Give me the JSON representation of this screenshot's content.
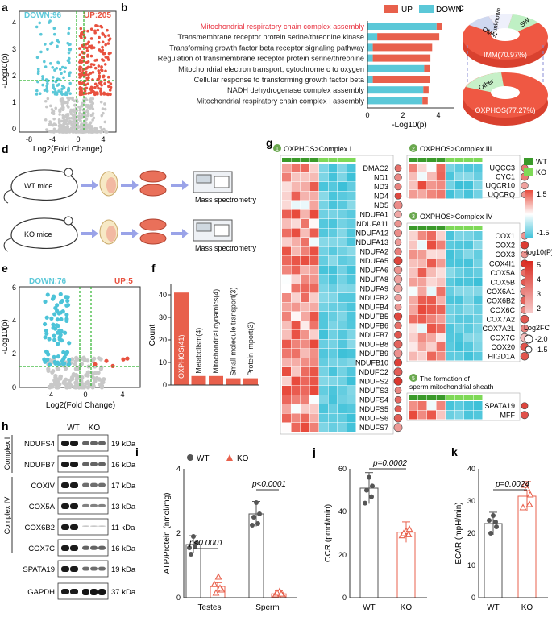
{
  "panels": {
    "a": "a",
    "b": "b",
    "c": "c",
    "d": "d",
    "e": "e",
    "f": "f",
    "g": "g",
    "h": "h",
    "i": "i",
    "j": "j",
    "k": "k"
  },
  "panel_a": {
    "down_label": "DOWN:96",
    "up_label": "UP:205",
    "y_ticks": [
      "0",
      "1",
      "2",
      "3",
      "4"
    ],
    "x_ticks": [
      "-8",
      "-4",
      "0",
      "4"
    ],
    "xlabel": "Log2(Fold Change)",
    "ylabel": "-Log10(p)",
    "colors": {
      "down": "#5bc8d8",
      "up": "#e8513f",
      "ns": "#c8c8c8",
      "threshold": "#2db52d"
    }
  },
  "panel_b": {
    "legend": {
      "up": "UP",
      "down": "DOWN"
    },
    "terms": [
      {
        "label": "Mitochondrial respiratory chain complex assembly",
        "highlight": true
      },
      {
        "label": "Transmembrane receptor protein serine/threonine kinase",
        "highlight": false
      },
      {
        "label": "Transforming growth factor beta receptor signaling pathway",
        "highlight": false
      },
      {
        "label": "Regulation of transmembrane receptor protein serine/threonine",
        "highlight": false
      },
      {
        "label": "Mitochondrial electron transport, cytochrome c to oxygen",
        "highlight": false
      },
      {
        "label": "Cellular response to transforming growth factor beta",
        "highlight": false
      },
      {
        "label": "NADH dehydrogenase complex assembly",
        "highlight": false
      },
      {
        "label": "Mitochondrial respiratory chain complex I assembly",
        "highlight": false
      }
    ],
    "x_ticks": [
      "0",
      "2",
      "4"
    ],
    "xlabel": "-Log10(p)",
    "colors": {
      "up": "#e8604c",
      "down": "#5bc8d8",
      "highlight": "#e8313f"
    }
  },
  "panel_c": {
    "top_labels": {
      "omm": "OMM",
      "unknown": "unknown",
      "sw": "SW",
      "imm": "IMM(70.97%)"
    },
    "bottom_labels": {
      "other": "Other",
      "oxphos": "OXPHOS(77.27%)"
    }
  },
  "panel_d": {
    "wt": "WT mice",
    "ko": "KO mice",
    "ms": "Mass spectrometry"
  },
  "panel_e": {
    "down_label": "DOWN:76",
    "up_label": "UP:5",
    "y_ticks": [
      "0",
      "2",
      "4",
      "6"
    ],
    "x_ticks": [
      "-4",
      "0",
      "4"
    ],
    "xlabel": "Log2(Fold Change)",
    "ylabel": "-Log10(p)"
  },
  "panel_f": {
    "ylabel": "Count",
    "y_ticks": [
      "0",
      "10",
      "20",
      "30",
      "40"
    ]
  },
  "chart_data": [
    {
      "type": "bar",
      "categories": [
        "OXPHOS(41)",
        "Metabolism(4)",
        "Mitochondrial dynamics(4)",
        "Small molecule transport(3)",
        "Protein import(3)"
      ],
      "values": [
        41,
        4,
        4,
        3,
        3
      ],
      "ylabel": "Count",
      "ylim": [
        0,
        45
      ]
    },
    {
      "type": "bar",
      "categories": [
        "Mitochondrial respiratory chain complex assembly",
        "Transmembrane receptor protein serine/threonine kinase",
        "Transforming growth factor beta receptor signaling pathway",
        "Regulation of transmembrane receptor protein serine/threonine",
        "Mitochondrial electron transport, cytochrome c to oxygen",
        "Cellular response to transforming growth factor beta",
        "NADH dehydrogenase complex assembly",
        "Mitochondrial respiratory chain complex I assembly"
      ],
      "series": [
        {
          "name": "DOWN",
          "values": [
            3.9,
            0.55,
            0.3,
            0.3,
            3.2,
            0.3,
            3.15,
            3.1
          ]
        },
        {
          "name": "UP",
          "values": [
            0.3,
            3.5,
            3.35,
            3.25,
            0.3,
            3.2,
            0.3,
            0.3
          ]
        }
      ],
      "xlabel": "-Log10(p)",
      "xlim": [
        0,
        4.5
      ]
    },
    {
      "type": "bar",
      "title": "",
      "categories": [
        "Testes",
        "Sperm"
      ],
      "series": [
        {
          "name": "WT",
          "values": [
            1.65,
            2.6
          ]
        },
        {
          "name": "KO",
          "values": [
            0.35,
            0.12
          ]
        }
      ],
      "ylabel": "ATP/Protein (nmol/mg)",
      "ylim": [
        0,
        4
      ],
      "annotations": [
        "p<0.0001",
        "p<0.0001"
      ]
    },
    {
      "type": "bar",
      "categories": [
        "WT",
        "KO"
      ],
      "values": [
        51,
        30.5
      ],
      "ylabel": "OCR (pmol/min)",
      "ylim": [
        0,
        60
      ],
      "annotations": [
        "p=0.0002"
      ]
    },
    {
      "type": "bar",
      "categories": [
        "WT",
        "KO"
      ],
      "values": [
        23,
        31.5
      ],
      "ylabel": "ECAR (mpH/min)",
      "ylim": [
        0,
        40
      ],
      "annotations": [
        "p=0.0024"
      ]
    }
  ],
  "panel_g": {
    "complex1": {
      "num": "1",
      "title": "OXPHOS>Complex I",
      "genes": [
        "DMAC2",
        "ND1",
        "ND3",
        "ND4",
        "ND5",
        "NDUFA1",
        "NDUFA11",
        "NDUFA12",
        "NDUFA13",
        "NDUFA2",
        "NDUFA5",
        "NDUFA6",
        "NDUFA8",
        "NDUFA9",
        "NDUFB2",
        "NDUFB4",
        "NDUFB5",
        "NDUFB6",
        "NDUFB7",
        "NDUFB8",
        "NDUFB9",
        "NDUFB10",
        "NDUFC2",
        "NDUFS2",
        "NDUFS3",
        "NDUFS4",
        "NDUFS5",
        "NDUFS6",
        "NDUFS7"
      ]
    },
    "complex3": {
      "num": "2",
      "title": "OXPHOS>Complex III",
      "genes": [
        "UQCC3",
        "CYC1",
        "UQCR10",
        "UQCRQ"
      ]
    },
    "complex4": {
      "num": "3",
      "title": "OXPHOS>Complex IV",
      "genes": [
        "COX1",
        "COX2",
        "COX3",
        "COX4I1",
        "COX5A",
        "COX5B",
        "COX6A1",
        "COX6B2",
        "COX6C",
        "COX7A2",
        "COX7A2L",
        "COX7C",
        "COX20",
        "HIGD1A"
      ]
    },
    "sheath": {
      "num": "5",
      "title1": "The formation of",
      "title2": "sperm mitochondrial sheath",
      "genes": [
        "SPATA19",
        "MFF"
      ]
    },
    "legend": {
      "wt": "WT",
      "ko": "KO",
      "scale_hi": "1.5",
      "scale_lo": "-1.5",
      "p_label": "-log10(P)",
      "p_ticks": [
        "5",
        "4",
        "3",
        "2"
      ],
      "fc_label": "Log2FC",
      "fc_a": "-2.0",
      "fc_b": "-1.5"
    }
  },
  "panel_h": {
    "header_wt": "WT",
    "header_ko": "KO",
    "group1": "Complex I",
    "group2": "Complex IV",
    "blots": [
      {
        "name": "NDUFS4",
        "kda": "19 kDa"
      },
      {
        "name": "NDUFB7",
        "kda": "16 kDa"
      },
      {
        "name": "COXIV",
        "kda": "17 kDa"
      },
      {
        "name": "COX5A",
        "kda": "13 kDa"
      },
      {
        "name": "COX6B2",
        "kda": "11 kDa"
      },
      {
        "name": "COX7C",
        "kda": "16 kDa"
      },
      {
        "name": "SPATA19",
        "kda": "19 kDa"
      },
      {
        "name": "GAPDH",
        "kda": "37 kDa"
      }
    ]
  },
  "panel_i": {
    "legend_wt": "WT",
    "legend_ko": "KO",
    "y_ticks": [
      "0",
      "2",
      "4"
    ],
    "ylabel": "ATP/Protein (nmol/mg)",
    "groups": [
      "Testes",
      "Sperm"
    ],
    "p1": "p<0.0001",
    "p2": "p<0.0001"
  },
  "panel_j": {
    "y_ticks": [
      "0",
      "20",
      "40",
      "60"
    ],
    "ylabel": "OCR (pmol/min)",
    "groups": [
      "WT",
      "KO"
    ],
    "p": "p=0.0002"
  },
  "panel_k": {
    "y_ticks": [
      "0",
      "10",
      "20",
      "30",
      "40"
    ],
    "ylabel": "ECAR (mpH/min)",
    "groups": [
      "WT",
      "KO"
    ],
    "p": "p=0.0024"
  }
}
